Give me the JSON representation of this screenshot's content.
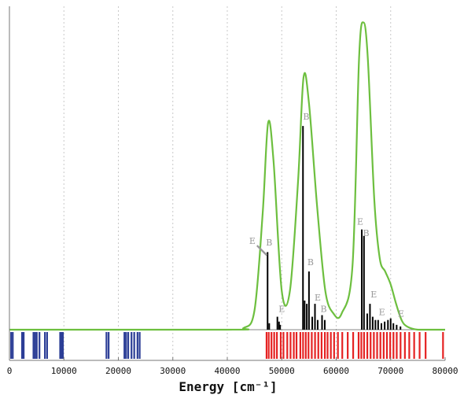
{
  "chart_data": {
    "type": "line",
    "title": "",
    "xlabel": "Energy [cm⁻¹]",
    "ylabel": "",
    "xlim": [
      0,
      80000
    ],
    "ylim": [
      0,
      1.0
    ],
    "grid": {
      "x": true,
      "y": false
    },
    "x_ticks": [
      "0",
      "10000",
      "20000",
      "30000",
      "40000",
      "50000",
      "60000",
      "70000",
      "80000"
    ],
    "colors": {
      "envelope": "#6dbf3f",
      "sticks": "#000000",
      "low_rug": "#2c3e96",
      "high_rug": "#e52222",
      "grid": "#c8c8c8",
      "label": "#999999"
    },
    "series": [
      {
        "kind": "envelope",
        "x": [
          0,
          40000,
          43000,
          45000,
          46500,
          47500,
          48500,
          50000,
          51500,
          53000,
          54000,
          55000,
          56500,
          58000,
          59500,
          61000,
          63000,
          64200,
          65000,
          65800,
          67000,
          68000,
          69000,
          70000,
          71000,
          72000,
          73000,
          75000,
          78000,
          80000
        ],
        "y": [
          0.0,
          0.0,
          0.005,
          0.06,
          0.36,
          0.64,
          0.52,
          0.12,
          0.12,
          0.46,
          0.78,
          0.7,
          0.38,
          0.12,
          0.05,
          0.05,
          0.2,
          0.84,
          0.95,
          0.84,
          0.4,
          0.22,
          0.18,
          0.14,
          0.08,
          0.03,
          0.01,
          0.0,
          0.0,
          0.0
        ]
      },
      {
        "kind": "sticks",
        "x": [
          47400,
          47700,
          49200,
          49500,
          49700,
          53900,
          54200,
          54600,
          55000,
          55600,
          56100,
          56600,
          57400,
          57900,
          64700,
          65100,
          65700,
          66200,
          66700,
          67200,
          67700,
          68300,
          68900,
          69500,
          70000,
          70500,
          71100,
          71800
        ],
        "y": [
          0.24,
          0.02,
          0.04,
          0.025,
          0.015,
          0.63,
          0.09,
          0.08,
          0.18,
          0.04,
          0.08,
          0.03,
          0.045,
          0.03,
          0.31,
          0.29,
          0.05,
          0.08,
          0.04,
          0.03,
          0.03,
          0.02,
          0.025,
          0.03,
          0.035,
          0.02,
          0.015,
          0.01
        ]
      }
    ],
    "rug_low_x": [
      300,
      600,
      2300,
      2600,
      4400,
      4700,
      5000,
      5500,
      6500,
      6900,
      9300,
      9600,
      9800,
      17800,
      18200,
      21100,
      21400,
      21800,
      22400,
      22900,
      23500,
      23900
    ],
    "rug_high_x": [
      47200,
      47600,
      48100,
      48600,
      49100,
      49800,
      50300,
      51000,
      51600,
      52200,
      52700,
      53400,
      53900,
      54400,
      54900,
      55500,
      56100,
      56700,
      57300,
      57900,
      58400,
      59000,
      59600,
      60300,
      61100,
      62100,
      63100,
      64100,
      64600,
      65100,
      65700,
      66300,
      66900,
      67500,
      68100,
      68700,
      69300,
      69900,
      70500,
      71100,
      71800,
      72600,
      73400,
      74300,
      75300,
      76400,
      79600
    ],
    "labels": [
      {
        "text": "E",
        "x": 44600,
        "y": 0.265
      },
      {
        "text": "B",
        "x": 47700,
        "y": 0.26
      },
      {
        "text": "E",
        "x": 50000,
        "y": 0.055
      },
      {
        "text": "B",
        "x": 54500,
        "y": 0.65
      },
      {
        "text": "B",
        "x": 55300,
        "y": 0.2
      },
      {
        "text": "E",
        "x": 56600,
        "y": 0.09
      },
      {
        "text": "B",
        "x": 57700,
        "y": 0.055
      },
      {
        "text": "E",
        "x": 64400,
        "y": 0.325
      },
      {
        "text": "B",
        "x": 65500,
        "y": 0.29
      },
      {
        "text": "E",
        "x": 66900,
        "y": 0.1
      },
      {
        "text": "E",
        "x": 68400,
        "y": 0.045
      },
      {
        "text": "E",
        "x": 71900,
        "y": 0.04
      }
    ]
  }
}
